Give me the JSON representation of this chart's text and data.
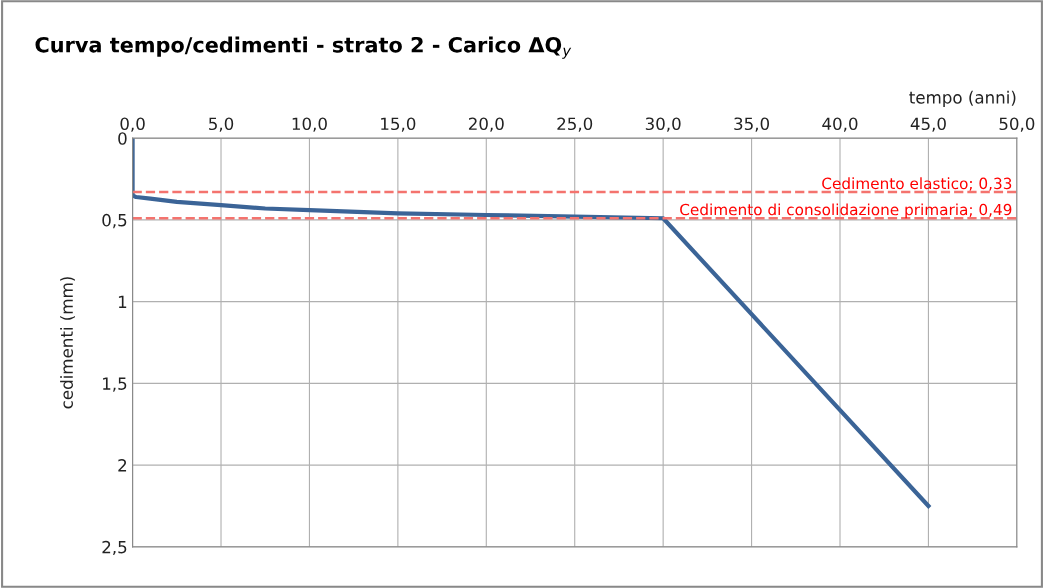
{
  "chart_data": {
    "type": "line",
    "title": "Curva tempo/cedimenti - strato 2 - Carico ΔQ$_{y}$",
    "xlabel": "tempo (anni)",
    "ylabel": "cedimenti (mm)",
    "series": [
      {
        "color": "#3b6497",
        "x": [
          0,
          0,
          0.2,
          1,
          2.5,
          5,
          7.5,
          10,
          15,
          20,
          25,
          30,
          45
        ],
        "values": [
          0,
          0.35,
          0.36,
          0.37,
          0.39,
          0.41,
          0.43,
          0.44,
          0.46,
          0.47,
          0.48,
          0.49,
          2.25
        ]
      }
    ],
    "xlim": [
      0,
      50
    ],
    "xticks": [
      {
        "value": 0,
        "label": "0,0"
      },
      {
        "value": 5,
        "label": "5,0"
      },
      {
        "value": 10,
        "label": "10,0"
      },
      {
        "value": 15,
        "label": "15,0"
      },
      {
        "value": 20,
        "label": "20,0"
      },
      {
        "value": 25,
        "label": "25,0"
      },
      {
        "value": 30,
        "label": "30,0"
      },
      {
        "value": 35,
        "label": "35,0"
      },
      {
        "value": 40,
        "label": "40,0"
      },
      {
        "value": 45,
        "label": "45,0"
      },
      {
        "value": 50,
        "label": "50,0"
      }
    ],
    "ylim": [
      2.5,
      0
    ],
    "yticks": [
      0,
      {
        "value": 0.5,
        "label": "0,5"
      },
      1,
      {
        "value": 1.5,
        "label": "1,5"
      },
      2,
      {
        "value": 2.5,
        "label": "2,5"
      }
    ],
    "ref_lines": [
      {
        "axis": "y",
        "value": 0.33,
        "label": "Cedimento elastico; 0,33",
        "color": "#f4736e",
        "line_style": "dashed"
      },
      {
        "axis": "y",
        "value": 0.49,
        "label": "Cedimento di consolidazione primaria; 0,49",
        "color": "#f4736e",
        "line_style": "dashed"
      }
    ],
    "grid": true,
    "marker": "none",
    "line_style": "solid"
  }
}
